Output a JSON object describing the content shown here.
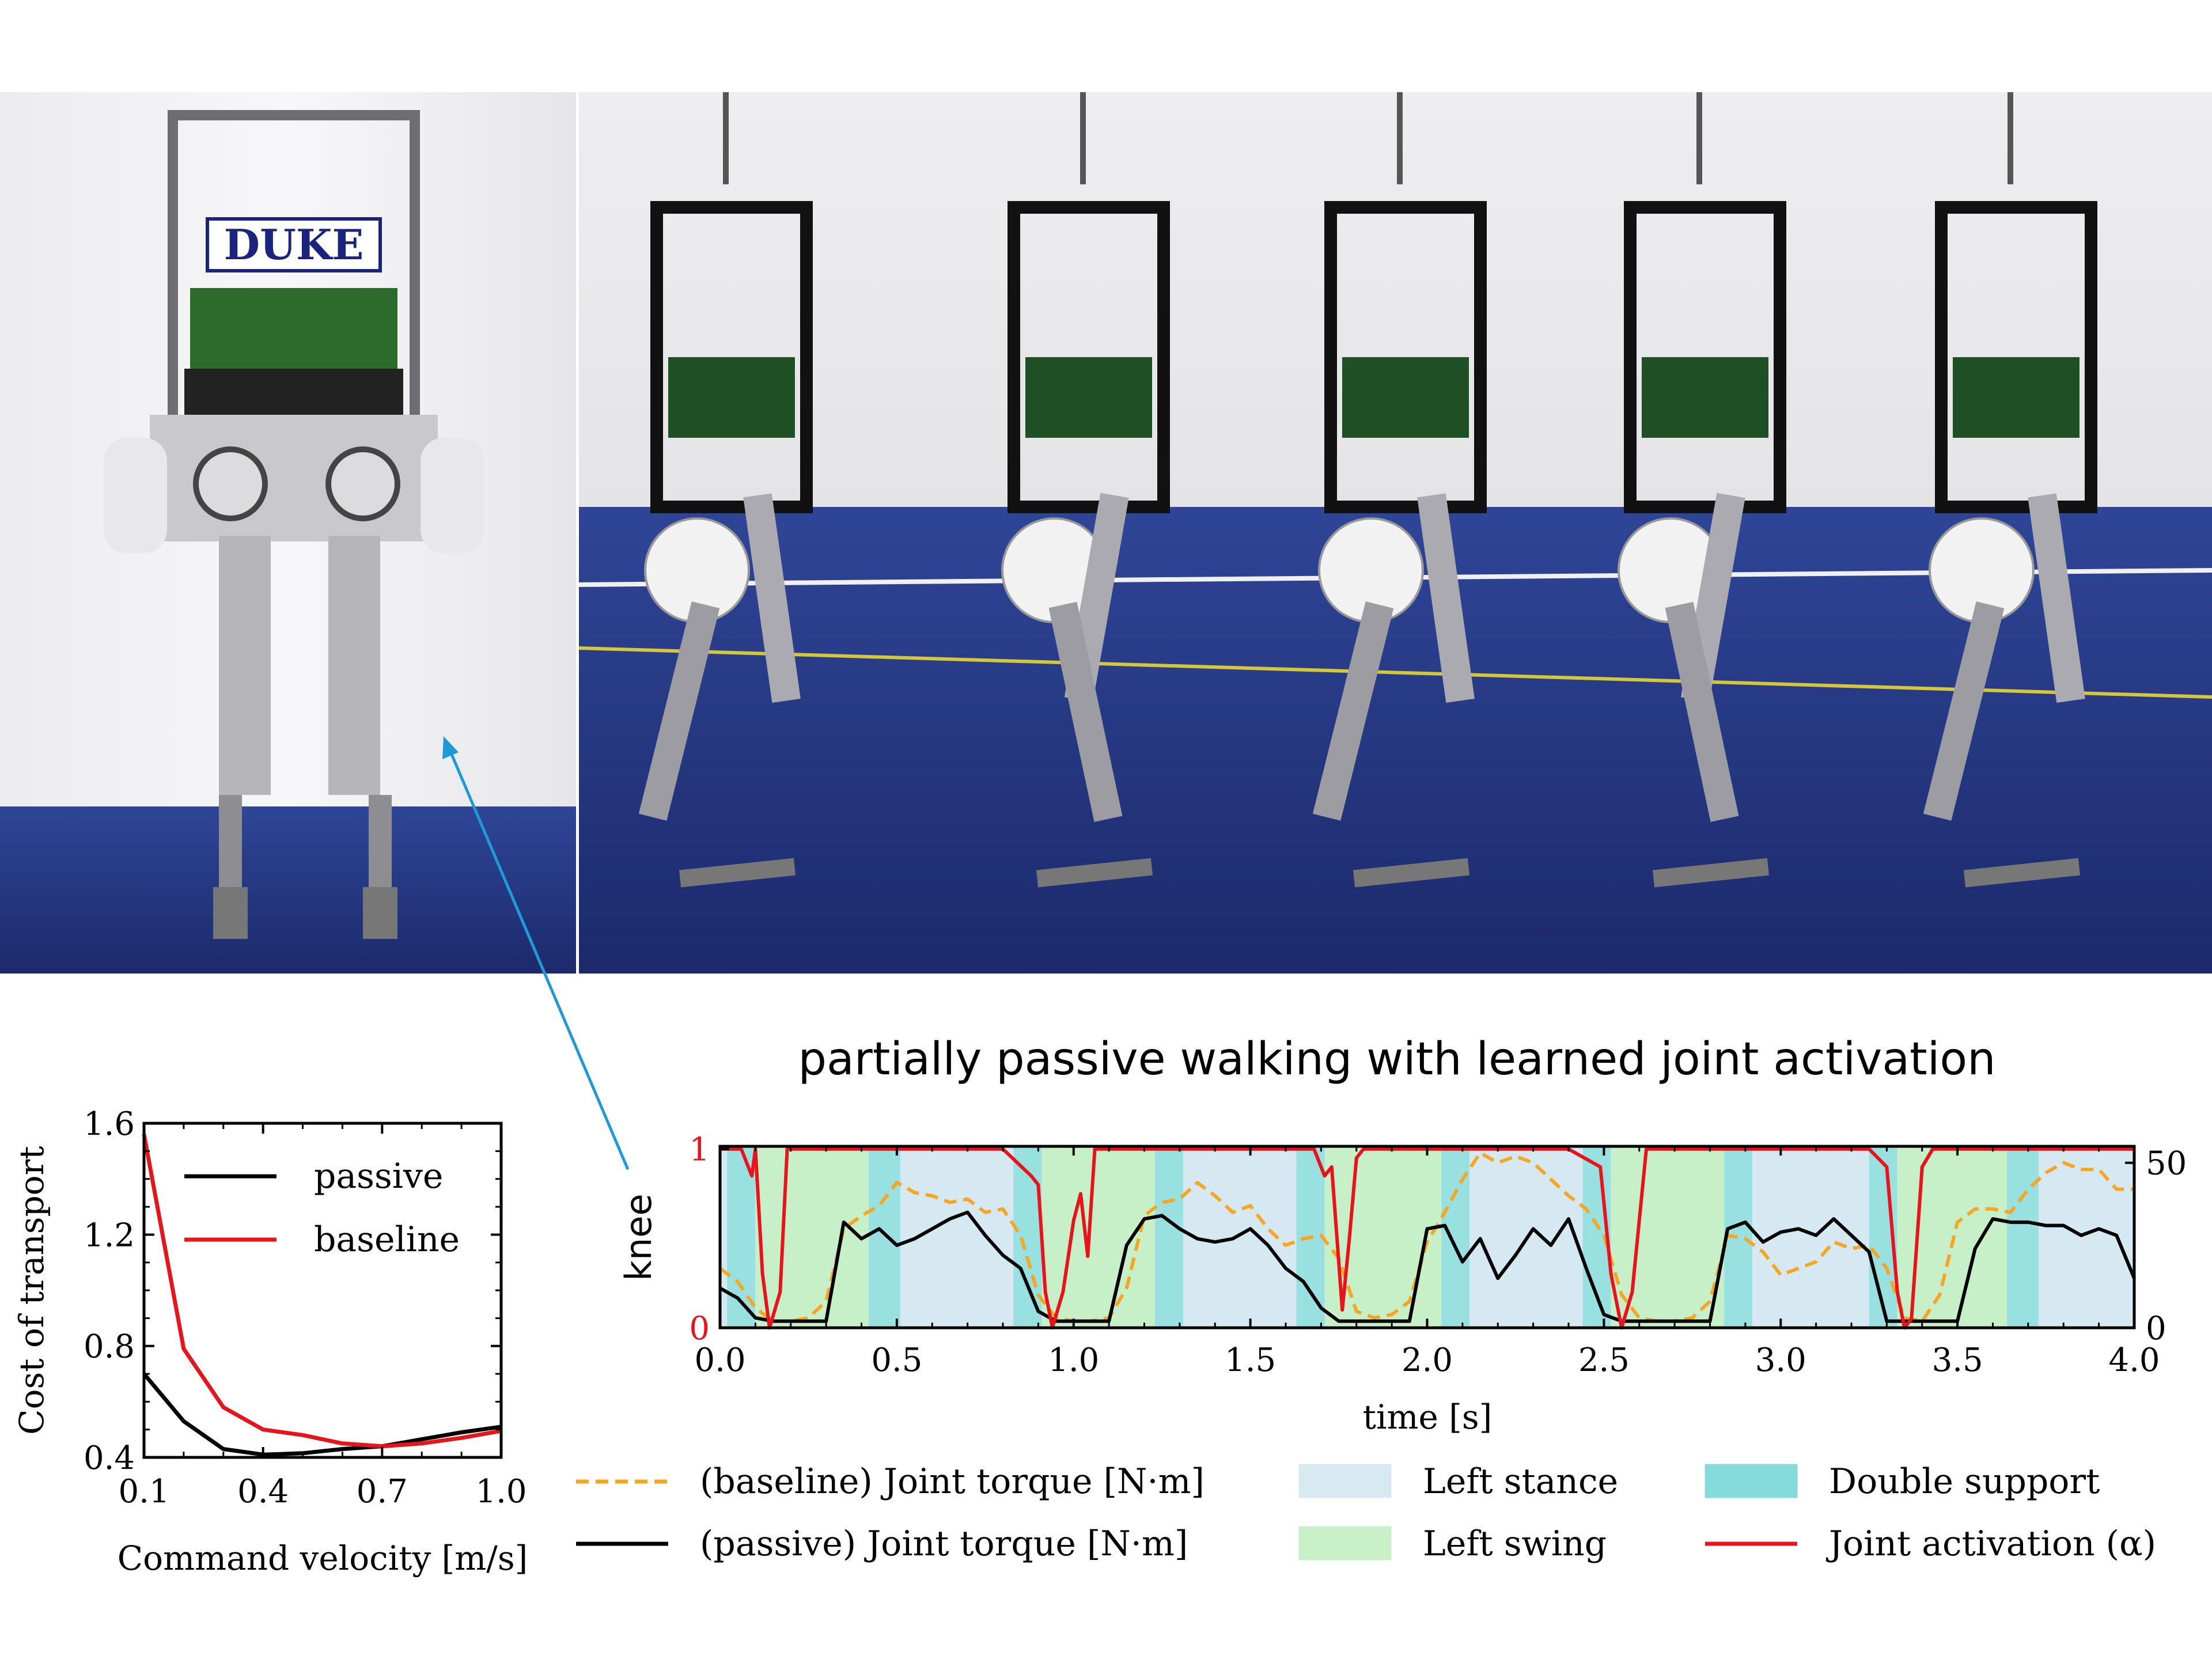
{
  "photos": {
    "left_photo": {
      "description_icon": "robot-photo",
      "logo_text": "DUKE"
    },
    "right_photo": {
      "description_icon": "robot-sequence-photo"
    }
  },
  "chart_data": [
    {
      "type": "line",
      "title": "",
      "xlabel": "Command velocity [m/s]",
      "ylabel": "Cost of transport",
      "xlim": [
        0.1,
        1.0
      ],
      "ylim": [
        0.4,
        1.6
      ],
      "x_ticks": [
        "0.1",
        "0.4",
        "0.7",
        "1.0"
      ],
      "y_ticks": [
        "0.4",
        "0.8",
        "1.2",
        "1.6"
      ],
      "legend": "top-right",
      "series": [
        {
          "name": "passive",
          "color": "#000000",
          "x": [
            0.1,
            0.2,
            0.3,
            0.4,
            0.5,
            0.6,
            0.7,
            0.8,
            0.9,
            1.0
          ],
          "y": [
            0.7,
            0.53,
            0.43,
            0.41,
            0.415,
            0.43,
            0.44,
            0.465,
            0.49,
            0.51
          ]
        },
        {
          "name": "baseline",
          "color": "#e8141b",
          "x": [
            0.1,
            0.2,
            0.3,
            0.4,
            0.5,
            0.6,
            0.7,
            0.8,
            0.9,
            1.0
          ],
          "y": [
            1.56,
            0.79,
            0.58,
            0.5,
            0.48,
            0.45,
            0.44,
            0.45,
            0.47,
            0.495
          ]
        }
      ]
    },
    {
      "type": "line",
      "title": "partially passive walking with learned joint activation",
      "xlabel": "time [s]",
      "ylabel": "knee",
      "xlim": [
        0.0,
        4.0
      ],
      "ylim_left": [
        0,
        1
      ],
      "ylim_right": [
        0,
        55
      ],
      "x_ticks": [
        "0.0",
        "0.5",
        "1.0",
        "1.5",
        "2.0",
        "2.5",
        "3.0",
        "3.5",
        "4.0"
      ],
      "left_ticks": [
        "0",
        "1"
      ],
      "right_ticks": [
        "0",
        "50"
      ],
      "left_tick_color": "#e8141b",
      "legend": "bottom",
      "phases": [
        {
          "kind": "stance",
          "start": 0.0,
          "end": 0.02
        },
        {
          "kind": "double",
          "start": 0.02,
          "end": 0.1
        },
        {
          "kind": "swing",
          "start": 0.1,
          "end": 0.42
        },
        {
          "kind": "double",
          "start": 0.42,
          "end": 0.51
        },
        {
          "kind": "stance",
          "start": 0.51,
          "end": 0.83
        },
        {
          "kind": "double",
          "start": 0.83,
          "end": 0.91
        },
        {
          "kind": "swing",
          "start": 0.91,
          "end": 1.23
        },
        {
          "kind": "double",
          "start": 1.23,
          "end": 1.31
        },
        {
          "kind": "stance",
          "start": 1.31,
          "end": 1.63
        },
        {
          "kind": "double",
          "start": 1.63,
          "end": 1.71
        },
        {
          "kind": "swing",
          "start": 1.71,
          "end": 2.04
        },
        {
          "kind": "double",
          "start": 2.04,
          "end": 2.12
        },
        {
          "kind": "stance",
          "start": 2.12,
          "end": 2.44
        },
        {
          "kind": "double",
          "start": 2.44,
          "end": 2.52
        },
        {
          "kind": "swing",
          "start": 2.52,
          "end": 2.84
        },
        {
          "kind": "double",
          "start": 2.84,
          "end": 2.92
        },
        {
          "kind": "stance",
          "start": 2.92,
          "end": 3.25
        },
        {
          "kind": "double",
          "start": 3.25,
          "end": 3.33
        },
        {
          "kind": "swing",
          "start": 3.33,
          "end": 3.64
        },
        {
          "kind": "double",
          "start": 3.64,
          "end": 3.73
        },
        {
          "kind": "stance",
          "start": 3.73,
          "end": 4.0
        }
      ],
      "series": [
        {
          "name": "(baseline) Joint torque [N·m]",
          "axis": "right",
          "color": "#f5a623",
          "dash": true,
          "x": [
            0.0,
            0.05,
            0.1,
            0.15,
            0.2,
            0.25,
            0.3,
            0.35,
            0.4,
            0.45,
            0.5,
            0.55,
            0.6,
            0.65,
            0.7,
            0.75,
            0.8,
            0.85,
            0.9,
            0.95,
            1.0,
            1.05,
            1.1,
            1.15,
            1.2,
            1.25,
            1.3,
            1.35,
            1.4,
            1.45,
            1.5,
            1.55,
            1.6,
            1.65,
            1.7,
            1.75,
            1.8,
            1.85,
            1.9,
            1.95,
            2.0,
            2.05,
            2.1,
            2.15,
            2.2,
            2.25,
            2.3,
            2.35,
            2.4,
            2.45,
            2.5,
            2.55,
            2.6,
            2.65,
            2.7,
            2.75,
            2.8,
            2.85,
            2.9,
            2.95,
            3.0,
            3.05,
            3.1,
            3.15,
            3.2,
            3.25,
            3.3,
            3.35,
            3.4,
            3.45,
            3.5,
            3.55,
            3.6,
            3.65,
            3.7,
            3.75,
            3.8,
            3.85,
            3.9,
            3.95,
            4.0
          ],
          "y": [
            18,
            14,
            6,
            2,
            2,
            3,
            8,
            30,
            34,
            37,
            44,
            41,
            40,
            38,
            39,
            35,
            36,
            28,
            10,
            3,
            2,
            2,
            3,
            12,
            34,
            38,
            39,
            44,
            40,
            35,
            37,
            30,
            25,
            27,
            28,
            21,
            5,
            3,
            4,
            8,
            26,
            35,
            45,
            53,
            50,
            52,
            50,
            45,
            40,
            36,
            28,
            10,
            3,
            2,
            2,
            3,
            8,
            28,
            27,
            23,
            16,
            18,
            20,
            26,
            24,
            25,
            18,
            3,
            2,
            10,
            32,
            36,
            36,
            35,
            42,
            47,
            50,
            48,
            48,
            42,
            42
          ]
        },
        {
          "name": "(passive) Joint torque [N·m]",
          "axis": "right",
          "color": "#000000",
          "dash": false,
          "x": [
            0.0,
            0.05,
            0.1,
            0.15,
            0.2,
            0.25,
            0.3,
            0.35,
            0.4,
            0.45,
            0.5,
            0.55,
            0.6,
            0.65,
            0.7,
            0.75,
            0.8,
            0.85,
            0.9,
            0.95,
            1.0,
            1.05,
            1.1,
            1.15,
            1.2,
            1.25,
            1.3,
            1.35,
            1.4,
            1.45,
            1.5,
            1.55,
            1.6,
            1.65,
            1.7,
            1.75,
            1.8,
            1.85,
            1.9,
            1.95,
            2.0,
            2.05,
            2.1,
            2.15,
            2.2,
            2.25,
            2.3,
            2.35,
            2.4,
            2.45,
            2.5,
            2.55,
            2.6,
            2.65,
            2.7,
            2.75,
            2.8,
            2.85,
            2.9,
            2.95,
            3.0,
            3.05,
            3.1,
            3.15,
            3.2,
            3.25,
            3.3,
            3.35,
            3.4,
            3.45,
            3.5,
            3.55,
            3.6,
            3.65,
            3.7,
            3.75,
            3.8,
            3.85,
            3.9,
            3.95,
            4.0
          ],
          "y": [
            12,
            9,
            3,
            2,
            2,
            2,
            2,
            32,
            27,
            30,
            25,
            27,
            30,
            33,
            35,
            28,
            22,
            18,
            5,
            2,
            2,
            2,
            2,
            25,
            33,
            34,
            30,
            27,
            26,
            27,
            30,
            25,
            18,
            14,
            6,
            2,
            2,
            2,
            2,
            2,
            30,
            31,
            20,
            27,
            15,
            22,
            30,
            25,
            33,
            18,
            4,
            2,
            2,
            2,
            2,
            2,
            2,
            30,
            32,
            26,
            29,
            30,
            28,
            33,
            28,
            23,
            2,
            2,
            2,
            2,
            2,
            24,
            33,
            32,
            32,
            31,
            31,
            28,
            30,
            28,
            15
          ]
        },
        {
          "name": "Joint activation (α)",
          "axis": "left",
          "color": "#e8141b",
          "dash": false,
          "x": [
            0.0,
            0.06,
            0.09,
            0.1,
            0.12,
            0.14,
            0.17,
            0.19,
            0.22,
            0.25,
            0.5,
            0.8,
            0.88,
            0.9,
            0.92,
            0.94,
            0.97,
            1.0,
            1.02,
            1.04,
            1.06,
            1.08,
            1.1,
            1.5,
            1.68,
            1.71,
            1.73,
            1.76,
            1.78,
            1.8,
            1.82,
            1.85,
            2.0,
            2.4,
            2.49,
            2.52,
            2.55,
            2.58,
            2.62,
            2.66,
            3.0,
            3.25,
            3.3,
            3.33,
            3.35,
            3.37,
            3.4,
            3.43,
            3.7,
            4.0
          ],
          "y": [
            1,
            1,
            0.85,
            1,
            0.3,
            0.0,
            0.2,
            1,
            1,
            1,
            1,
            1,
            0.85,
            0.8,
            0.2,
            0.0,
            0.2,
            0.6,
            0.75,
            0.4,
            1,
            1,
            1,
            1,
            1,
            0.85,
            0.9,
            0.1,
            0.5,
            0.95,
            1,
            1,
            1,
            1,
            0.9,
            0.3,
            0.0,
            0.2,
            1,
            1,
            1,
            1,
            0.9,
            0.2,
            0.0,
            0.05,
            0.9,
            1,
            1,
            1
          ]
        }
      ],
      "legend_entries": [
        {
          "label": "(baseline) Joint torque [N·m]",
          "kind": "dash",
          "color": "#f5a623"
        },
        {
          "label": "(passive) Joint torque [N·m]",
          "kind": "line",
          "color": "#000000"
        },
        {
          "label": "Left stance",
          "kind": "patch",
          "color": "#d6e8f2"
        },
        {
          "label": "Left swing",
          "kind": "patch",
          "color": "#c8f0c8"
        },
        {
          "label": "Double support",
          "kind": "patch",
          "color": "#7fdada"
        },
        {
          "label": "Joint activation (α)",
          "kind": "line",
          "color": "#e8141b"
        }
      ]
    }
  ],
  "colors": {
    "stance": "#d6e8f2",
    "swing": "#c8f0c8",
    "double": "#7fdada",
    "arrow": "#1e9bd7",
    "carpet": "#2b3f8f"
  }
}
